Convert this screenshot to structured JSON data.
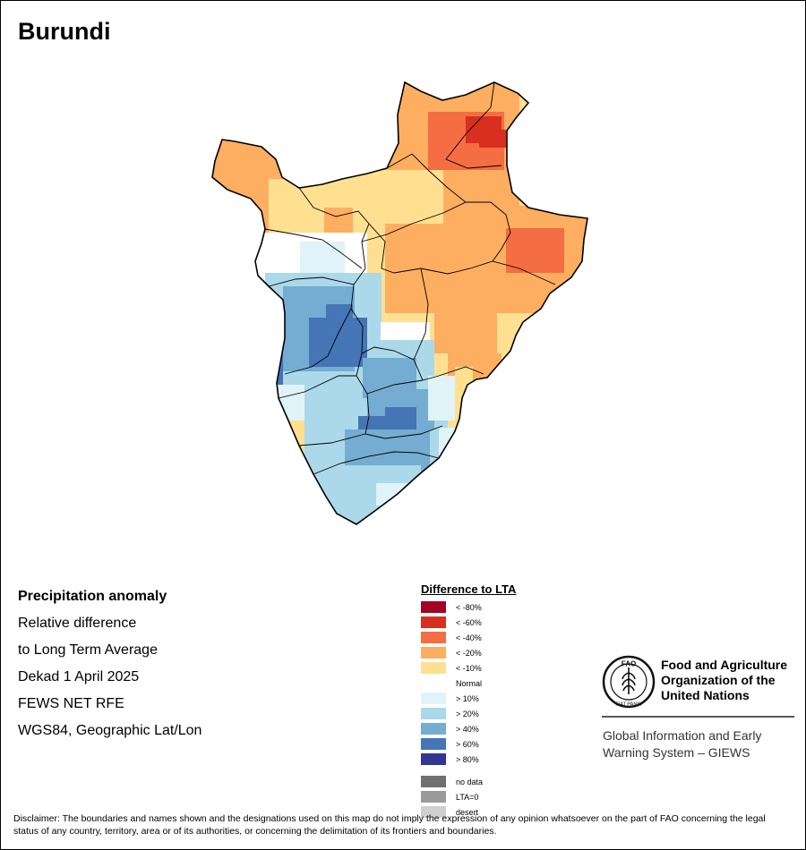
{
  "map": {
    "title": "Burundi"
  },
  "info": {
    "heading": "Precipitation anomaly",
    "line1": "Relative difference",
    "line2": "to Long Term Average",
    "line3": "Dekad 1 April 2025",
    "line4": "FEWS NET RFE",
    "line5": "WGS84, Geographic Lat/Lon"
  },
  "legend": {
    "title": "Difference to LTA",
    "classes": [
      {
        "label": "< -80%",
        "color": "#a50026"
      },
      {
        "label": "< -60%",
        "color": "#d7301f"
      },
      {
        "label": "< -40%",
        "color": "#f46d43"
      },
      {
        "label": "< -20%",
        "color": "#fdae61"
      },
      {
        "label": "< -10%",
        "color": "#fee090"
      },
      {
        "label": "Normal",
        "color": "#ffffff"
      },
      {
        "label": "> 10%",
        "color": "#e0f3f8"
      },
      {
        "label": "> 20%",
        "color": "#abd9e9"
      },
      {
        "label": "> 40%",
        "color": "#74add1"
      },
      {
        "label": "> 60%",
        "color": "#4575b4"
      },
      {
        "label": "> 80%",
        "color": "#313695"
      }
    ],
    "special": [
      {
        "label": "no data",
        "color": "#707070"
      },
      {
        "label": "LTA=0",
        "color": "#9a9a9a"
      },
      {
        "label": "desert",
        "color": "#cfcfcf"
      }
    ]
  },
  "org": {
    "logo_text": "FAO",
    "logo_motto": "FIAT PANIS",
    "name_line1": "Food and Agriculture",
    "name_line2": "Organization of the",
    "name_line3": "United Nations",
    "system_line1": "Global Information and Early",
    "system_line2": "Warning System – GIEWS"
  },
  "disclaimer": "Disclaimer: The boundaries and names shown and the designations used on this map do not imply the expression of any opinion whatsoever on the part of FAO concerning the legal status of any country, territory, area or of its authorities, or concerning the delimitation of its frontiers and boundaries."
}
